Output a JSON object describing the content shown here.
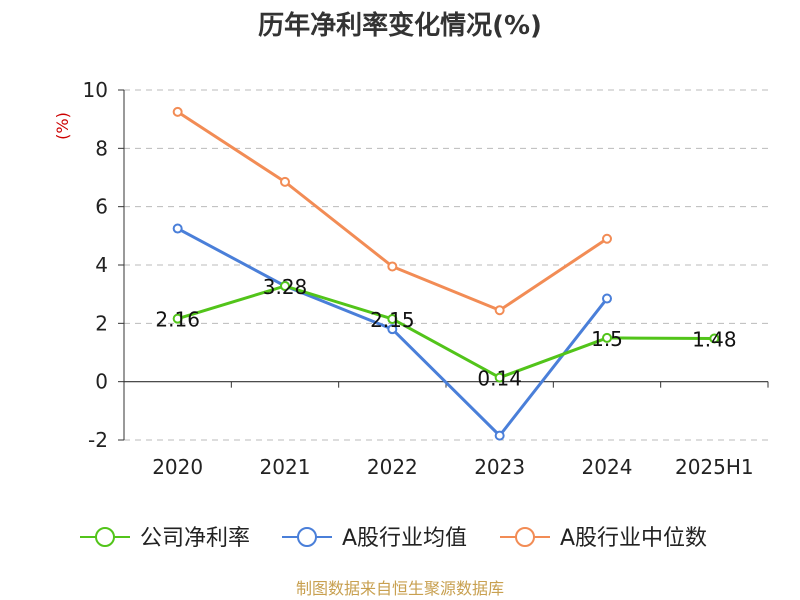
{
  "chart_data": {
    "type": "line",
    "title": "历年净利率变化情况(%)",
    "ylabel": "(%)",
    "categories": [
      "2020",
      "2021",
      "2022",
      "2023",
      "2024",
      "2025H1"
    ],
    "yticks": [
      "10",
      "8",
      "6",
      "4",
      "2",
      "0",
      "-2"
    ],
    "ylim": [
      -2,
      10
    ],
    "grid": true,
    "legend_position": "bottom",
    "series": [
      {
        "name": "公司净利率",
        "color": "#52c41a",
        "values": [
          2.16,
          3.28,
          2.15,
          0.14,
          1.5,
          1.48
        ],
        "labels": [
          "2.16",
          "3.28",
          "2.15",
          "0.14",
          "1.5",
          "1.48"
        ]
      },
      {
        "name": "A股行业均值",
        "color": "#4a7fd9",
        "values": [
          5.25,
          3.28,
          1.8,
          -1.85,
          2.85,
          null
        ]
      },
      {
        "name": "A股行业中位数",
        "color": "#f28c55",
        "values": [
          9.25,
          6.85,
          3.95,
          2.45,
          4.9,
          null
        ]
      }
    ]
  },
  "source": {
    "text": "制图数据来自恒生聚源数据库",
    "color": "#c8a050"
  }
}
